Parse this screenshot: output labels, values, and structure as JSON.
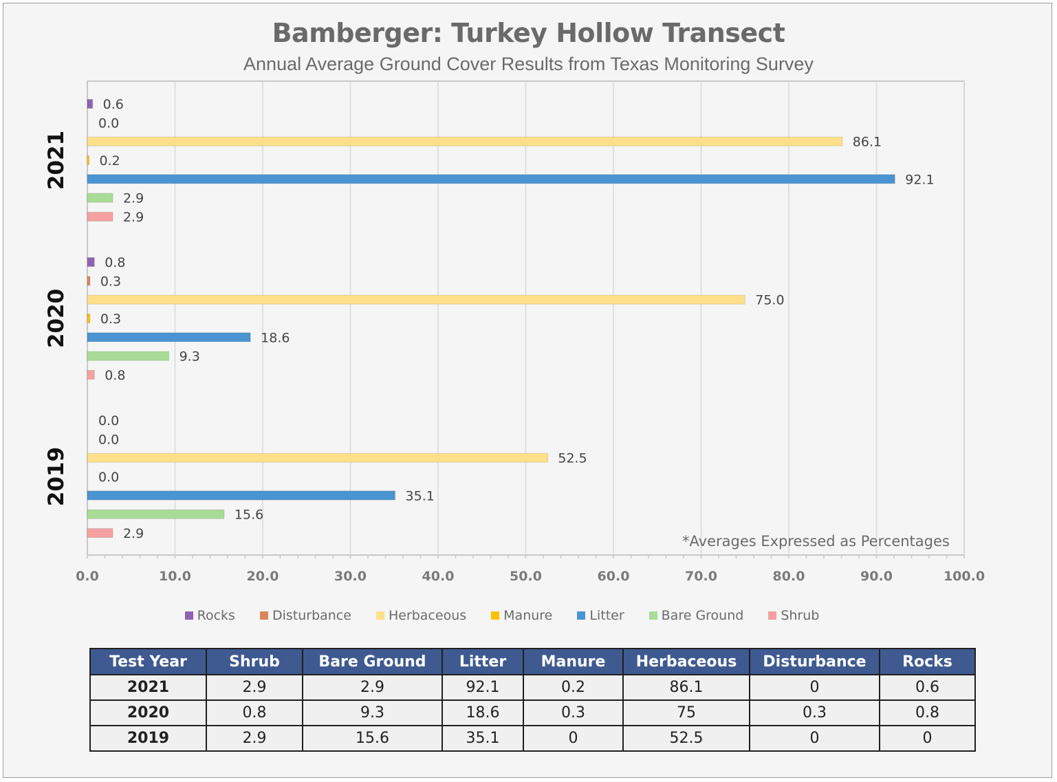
{
  "title": "Bamberger: Turkey Hollow Transect",
  "subtitle": "Annual Average Ground Cover Results from Texas Monitoring Survey",
  "note": "*Averages Expressed as Percentages",
  "colors": {
    "Rocks": "#8e63b3",
    "Disturbance": "#d9875a",
    "Herbaceous": "#ffe08a",
    "Manure": "#ffc000",
    "Litter": "#4a95d1",
    "Bare Ground": "#a9dc96",
    "Shrub": "#f4a0a0"
  },
  "chart_data": {
    "type": "bar",
    "orientation": "horizontal",
    "categories": [
      "2021",
      "2020",
      "2019"
    ],
    "series": [
      {
        "name": "Rocks",
        "values": [
          0.6,
          0.8,
          0.0
        ],
        "labels": [
          "0.6",
          "0.8",
          "0.0"
        ]
      },
      {
        "name": "Disturbance",
        "values": [
          0.0,
          0.3,
          0.0
        ],
        "labels": [
          "0.0",
          "0.3",
          "0.0"
        ]
      },
      {
        "name": "Herbaceous",
        "values": [
          86.1,
          75.0,
          52.5
        ],
        "labels": [
          "86.1",
          "75.0",
          "52.5"
        ]
      },
      {
        "name": "Manure",
        "values": [
          0.2,
          0.3,
          0.0
        ],
        "labels": [
          "0.2",
          "0.3",
          "0.0"
        ]
      },
      {
        "name": "Litter",
        "values": [
          92.1,
          18.6,
          35.1
        ],
        "labels": [
          "92.1",
          "18.6",
          "35.1"
        ]
      },
      {
        "name": "Bare Ground",
        "values": [
          2.9,
          9.3,
          15.6
        ],
        "labels": [
          "2.9",
          "9.3",
          "15.6"
        ]
      },
      {
        "name": "Shrub",
        "values": [
          2.9,
          0.8,
          2.9
        ],
        "labels": [
          "2.9",
          "0.8",
          "2.9"
        ]
      }
    ],
    "xlim": [
      0,
      100
    ],
    "xticks": [
      "0.0",
      "10.0",
      "20.0",
      "30.0",
      "40.0",
      "50.0",
      "60.0",
      "70.0",
      "80.0",
      "90.0",
      "100.0"
    ],
    "grid": true,
    "legend": "bottom"
  },
  "table": {
    "headers": [
      "Test Year",
      "Shrub",
      "Bare Ground",
      "Litter",
      "Manure",
      "Herbaceous",
      "Disturbance",
      "Rocks"
    ],
    "rows": [
      [
        "2021",
        "2.9",
        "2.9",
        "92.1",
        "0.2",
        "86.1",
        "0",
        "0.6"
      ],
      [
        "2020",
        "0.8",
        "9.3",
        "18.6",
        "0.3",
        "75",
        "0.3",
        "0.8"
      ],
      [
        "2019",
        "2.9",
        "15.6",
        "35.1",
        "0",
        "52.5",
        "0",
        "0"
      ]
    ]
  }
}
